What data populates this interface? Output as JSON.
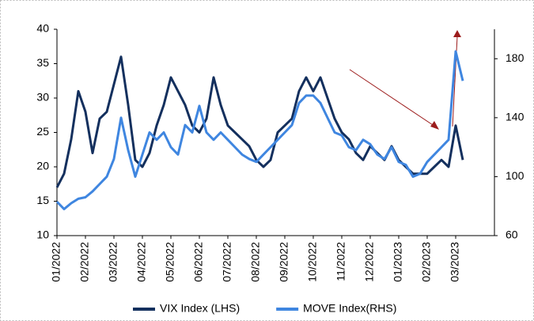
{
  "chart_data": {
    "type": "line",
    "categories": [
      "01/2022",
      null,
      null,
      null,
      "02/2022",
      null,
      null,
      null,
      "03/2022",
      null,
      null,
      null,
      "04/2022",
      null,
      null,
      null,
      "05/2022",
      null,
      null,
      null,
      "06/2022",
      null,
      null,
      null,
      "07/2022",
      null,
      null,
      null,
      "08/2022",
      null,
      null,
      null,
      "09/2022",
      null,
      null,
      null,
      "10/2022",
      null,
      null,
      null,
      "11/2022",
      null,
      null,
      null,
      "12/2022",
      null,
      null,
      null,
      "01/2023",
      null,
      null,
      null,
      "02/2023",
      null,
      null,
      null,
      "03/2023",
      null
    ],
    "series": [
      {
        "name": "VIX Index (LHS)",
        "color": "#14305e",
        "axis": "y",
        "values": [
          17,
          19,
          24,
          31,
          28,
          22,
          27,
          28,
          32,
          36,
          29,
          21,
          20,
          22,
          26,
          29,
          33,
          31,
          29,
          26,
          25,
          27,
          33,
          29,
          26,
          25,
          24,
          23,
          21,
          20,
          21,
          25,
          26,
          27,
          31,
          33,
          31,
          33,
          30,
          27,
          25,
          24,
          22,
          21,
          23,
          22,
          21,
          23,
          21,
          20,
          19,
          19,
          19,
          20,
          21,
          20,
          26,
          21
        ]
      },
      {
        "name": "MOVE Index(RHS)",
        "color": "#3f86e0",
        "axis": "y2",
        "values": [
          83,
          78,
          82,
          85,
          86,
          90,
          95,
          100,
          112,
          140,
          118,
          100,
          115,
          130,
          125,
          130,
          120,
          115,
          135,
          130,
          148,
          130,
          125,
          130,
          125,
          120,
          115,
          112,
          110,
          115,
          120,
          125,
          130,
          135,
          150,
          155,
          155,
          150,
          140,
          130,
          128,
          120,
          118,
          125,
          122,
          115,
          112,
          120,
          110,
          108,
          100,
          102,
          110,
          115,
          120,
          125,
          185,
          165
        ]
      }
    ],
    "ylim": [
      10,
      40
    ],
    "yticks": [
      10,
      15,
      20,
      25,
      30,
      35,
      40
    ],
    "y2lim": [
      60,
      200
    ],
    "y2ticks": [
      60,
      100,
      140,
      180
    ],
    "legend": "bottom"
  }
}
